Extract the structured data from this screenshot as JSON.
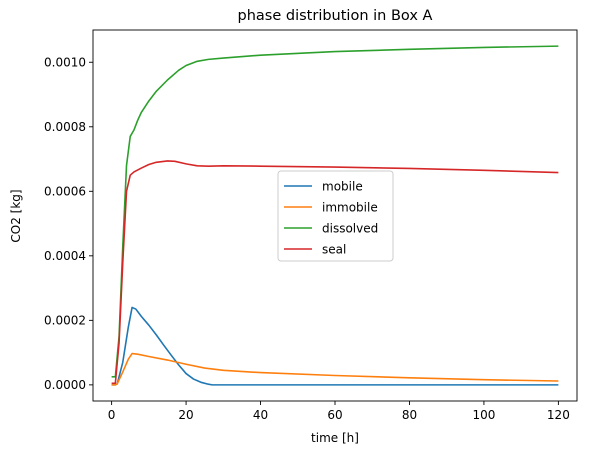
{
  "chart_data": {
    "type": "line",
    "title": "phase distribution in Box A",
    "xlabel": "time [h]",
    "ylabel": "CO2 [kg]",
    "xlim": [
      -5,
      125
    ],
    "ylim": [
      -5e-05,
      0.0011
    ],
    "xticks": [
      0,
      20,
      40,
      60,
      80,
      100,
      120
    ],
    "xtick_labels": [
      "0",
      "20",
      "40",
      "60",
      "80",
      "100",
      "120"
    ],
    "yticks": [
      0,
      0.0002,
      0.0004,
      0.0006,
      0.0008,
      0.001
    ],
    "ytick_labels": [
      "0.0000",
      "0.0002",
      "0.0004",
      "0.0006",
      "0.0008",
      "0.0010"
    ],
    "grid": false,
    "legend_position": "center",
    "series": [
      {
        "name": "mobile",
        "color": "#1f77b4",
        "x": [
          0,
          1,
          1.5,
          3,
          4.5,
          5.5,
          6.5,
          8,
          10,
          12,
          14,
          16,
          18,
          20,
          22,
          24,
          26,
          27,
          30,
          40,
          60,
          80,
          100,
          120
        ],
        "y": [
          0,
          0,
          3e-06,
          7e-05,
          0.00018,
          0.00024,
          0.000235,
          0.000212,
          0.000185,
          0.000155,
          0.000123,
          9.2e-05,
          6.2e-05,
          3.5e-05,
          1.8e-05,
          8e-06,
          2e-06,
          0,
          0,
          0,
          0,
          0,
          0,
          0
        ]
      },
      {
        "name": "immobile",
        "color": "#ff7f0e",
        "x": [
          0,
          1,
          1.5,
          3,
          4.5,
          5.5,
          7,
          10,
          15,
          20,
          25,
          30,
          40,
          60,
          80,
          100,
          120
        ],
        "y": [
          0,
          0,
          3e-06,
          4e-05,
          8e-05,
          9.7e-05,
          9.5e-05,
          8.8e-05,
          7.7e-05,
          6.4e-05,
          5.2e-05,
          4.5e-05,
          3.8e-05,
          2.9e-05,
          2.2e-05,
          1.6e-05,
          1.2e-05
        ]
      },
      {
        "name": "dissolved",
        "color": "#2ca02c",
        "x": [
          0,
          1,
          2,
          3,
          4,
          5,
          6,
          7,
          8,
          10,
          12,
          15,
          18,
          20,
          23,
          26,
          30,
          40,
          60,
          80,
          100,
          120
        ],
        "y": [
          2.5e-05,
          2.5e-05,
          0.00015,
          0.00043,
          0.00068,
          0.00077,
          0.00079,
          0.00082,
          0.000845,
          0.00088,
          0.00091,
          0.000945,
          0.000975,
          0.00099,
          0.001003,
          0.001009,
          0.001013,
          0.001022,
          0.001033,
          0.00104,
          0.001046,
          0.00105
        ]
      },
      {
        "name": "seal",
        "color": "#d62728",
        "x": [
          0,
          1,
          2,
          3,
          4,
          5,
          6,
          8,
          10,
          12,
          15,
          17,
          20,
          23,
          26,
          30,
          40,
          60,
          80,
          100,
          120
        ],
        "y": [
          5e-06,
          5e-06,
          0.00013,
          0.00038,
          0.0006,
          0.00065,
          0.00066,
          0.000672,
          0.000683,
          0.00069,
          0.000694,
          0.000693,
          0.000685,
          0.000679,
          0.000678,
          0.000679,
          0.000678,
          0.000675,
          0.000671,
          0.000665,
          0.000658
        ]
      }
    ]
  }
}
